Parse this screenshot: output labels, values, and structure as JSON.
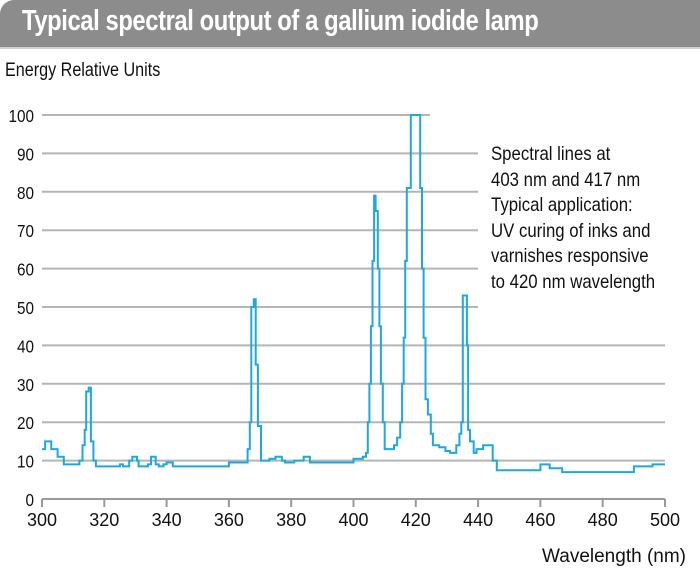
{
  "chart_data": {
    "type": "line",
    "title": "Typical spectral output of a gallium iodide lamp",
    "ylabel": "Energy Relative Units",
    "xlabel": "Wavelength (nm)",
    "xlim": [
      300,
      500
    ],
    "ylim": [
      0,
      100
    ],
    "xticks": [
      300,
      320,
      340,
      360,
      380,
      400,
      420,
      440,
      460,
      480,
      500
    ],
    "yticks": [
      0,
      10,
      20,
      30,
      40,
      50,
      60,
      70,
      80,
      90,
      100
    ],
    "grid": "horizontal",
    "line_color": "#1ea8e2",
    "annotation": [
      "Spectral lines at",
      "403 nm and 417 nm",
      "Typical application:",
      "UV curing of inks and",
      "varnishes responsive",
      "to 420 nm wavelength"
    ],
    "series": [
      {
        "name": "gallium iodide lamp",
        "style": "step",
        "points": [
          [
            300,
            13
          ],
          [
            301,
            15
          ],
          [
            303,
            13
          ],
          [
            305,
            11
          ],
          [
            307,
            9
          ],
          [
            312,
            10
          ],
          [
            313,
            14
          ],
          [
            313.7,
            18
          ],
          [
            314.2,
            28
          ],
          [
            315,
            29
          ],
          [
            315.7,
            15
          ],
          [
            316.5,
            10
          ],
          [
            317.3,
            8.5
          ],
          [
            325,
            9
          ],
          [
            326,
            8.5
          ],
          [
            328,
            10
          ],
          [
            329,
            11
          ],
          [
            330.5,
            10
          ],
          [
            331,
            8.5
          ],
          [
            334,
            9
          ],
          [
            335,
            11
          ],
          [
            336.5,
            9
          ],
          [
            337.5,
            8.5
          ],
          [
            339,
            9
          ],
          [
            340,
            9.5
          ],
          [
            342,
            8.5
          ],
          [
            360,
            9.5
          ],
          [
            366,
            13
          ],
          [
            366.7,
            20
          ],
          [
            367.2,
            50
          ],
          [
            368,
            52
          ],
          [
            368.6,
            35
          ],
          [
            369.3,
            19
          ],
          [
            370.3,
            10
          ],
          [
            373,
            10.5
          ],
          [
            375,
            11
          ],
          [
            377,
            10
          ],
          [
            378,
            9.5
          ],
          [
            380,
            9.5
          ],
          [
            381,
            10
          ],
          [
            384,
            11
          ],
          [
            386,
            9.5
          ],
          [
            400,
            10.5
          ],
          [
            403,
            11
          ],
          [
            404,
            12
          ],
          [
            404.6,
            20
          ],
          [
            405.1,
            30
          ],
          [
            405.6,
            45
          ],
          [
            406.1,
            62
          ],
          [
            406.6,
            79
          ],
          [
            407.1,
            75
          ],
          [
            407.8,
            60
          ],
          [
            408.3,
            45
          ],
          [
            408.8,
            30
          ],
          [
            409.4,
            20
          ],
          [
            410,
            13
          ],
          [
            412,
            13
          ],
          [
            413,
            14
          ],
          [
            414,
            16
          ],
          [
            415,
            20
          ],
          [
            415.6,
            30
          ],
          [
            416.1,
            42
          ],
          [
            416.6,
            62
          ],
          [
            417.1,
            81
          ],
          [
            418.4,
            100
          ],
          [
            421.4,
            81
          ],
          [
            422,
            60
          ],
          [
            422.5,
            42
          ],
          [
            423.1,
            26
          ],
          [
            423.9,
            22
          ],
          [
            424.8,
            17
          ],
          [
            425.5,
            14
          ],
          [
            427.5,
            13.5
          ],
          [
            429.5,
            12.5
          ],
          [
            431,
            12
          ],
          [
            433,
            14
          ],
          [
            434,
            17
          ],
          [
            434.6,
            20
          ],
          [
            435.1,
            53
          ],
          [
            436.4,
            40
          ],
          [
            436.8,
            18
          ],
          [
            437.4,
            15
          ],
          [
            438.6,
            12
          ],
          [
            439.5,
            13
          ],
          [
            441.6,
            14
          ],
          [
            444,
            14
          ],
          [
            444.7,
            10
          ],
          [
            446,
            7.5
          ],
          [
            459,
            7.5
          ],
          [
            460,
            9
          ],
          [
            463,
            8
          ],
          [
            467,
            7
          ],
          [
            490,
            8.5
          ],
          [
            496,
            9
          ],
          [
            500,
            9
          ]
        ]
      }
    ]
  }
}
